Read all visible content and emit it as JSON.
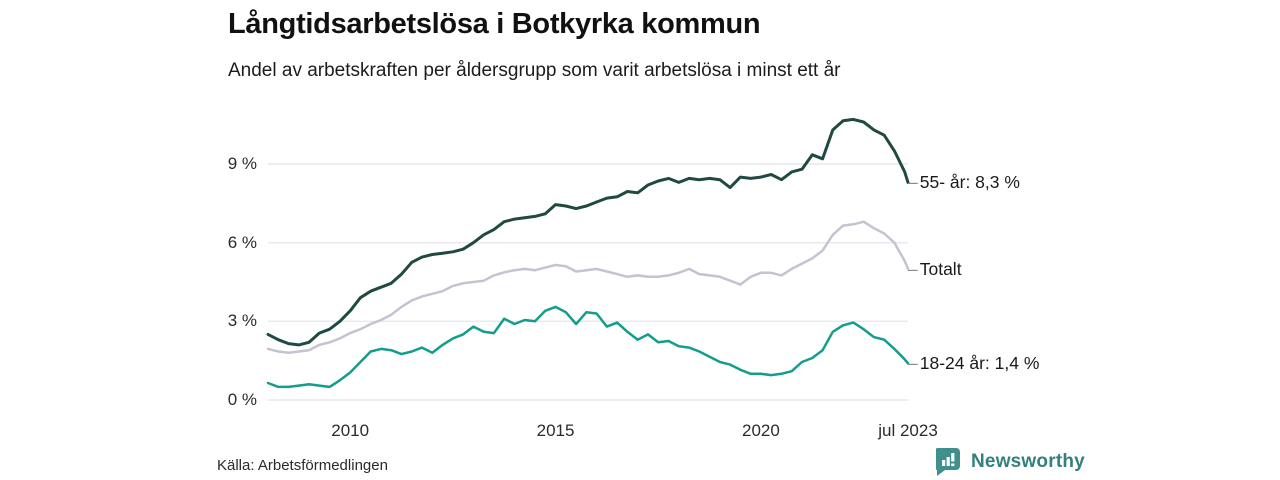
{
  "header": {
    "title": "Långtidsarbetslösa i Botkyrka kommun",
    "subtitle": "Andel av arbetskraften per åldersgrupp som varit arbetslösa i minst ett år"
  },
  "footer": {
    "source": "Källa: Arbetsförmedlingen",
    "logo_text": "Newsworthy"
  },
  "colors": {
    "series_55": "#204a41",
    "series_total": "#c6c2d1",
    "series_1824": "#149c8c",
    "grid": "#e9e8ec",
    "leader_dash": "#8c8c8c",
    "logo_teal": "#3e8f8d"
  },
  "chart_data": {
    "type": "line",
    "title": "Långtidsarbetslösa i Botkyrka kommun",
    "subtitle": "Andel av arbetskraften per åldersgrupp som varit arbetslösa i minst ett år",
    "xlabel": "",
    "ylabel": "",
    "grid": "horizontal",
    "legend_position": "right-end-labels",
    "x_range": [
      2008,
      2023.58
    ],
    "y_range_gridlines": [
      0,
      9
    ],
    "y_ticks": [
      {
        "value": 0,
        "label": "0 %"
      },
      {
        "value": 3,
        "label": "3 %"
      },
      {
        "value": 6,
        "label": "6 %"
      },
      {
        "value": 9,
        "label": "9 %"
      }
    ],
    "x_ticks": [
      {
        "value": 2010,
        "label": "2010"
      },
      {
        "value": 2015,
        "label": "2015"
      },
      {
        "value": 2020,
        "label": "2020"
      },
      {
        "value": 2023.58,
        "label": "jul 2023"
      }
    ],
    "x": [
      2008,
      2008.25,
      2008.5,
      2008.75,
      2009,
      2009.25,
      2009.5,
      2009.75,
      2010,
      2010.25,
      2010.5,
      2010.75,
      2011,
      2011.25,
      2011.5,
      2011.75,
      2012,
      2012.25,
      2012.5,
      2012.75,
      2013,
      2013.25,
      2013.5,
      2013.75,
      2014,
      2014.25,
      2014.5,
      2014.75,
      2015,
      2015.25,
      2015.5,
      2015.75,
      2016,
      2016.25,
      2016.5,
      2016.75,
      2017,
      2017.25,
      2017.5,
      2017.75,
      2018,
      2018.25,
      2018.5,
      2018.75,
      2019,
      2019.25,
      2019.5,
      2019.75,
      2020,
      2020.25,
      2020.5,
      2020.75,
      2021,
      2021.25,
      2021.5,
      2021.75,
      2022,
      2022.25,
      2022.5,
      2022.75,
      2023,
      2023.25,
      2023.5,
      2023.58
    ],
    "series": [
      {
        "name": "Totalt",
        "end_label": "Totalt",
        "end_value_label": null,
        "color_key": "series_total",
        "stroke_width": 2.5,
        "values": [
          1.95,
          1.85,
          1.8,
          1.85,
          1.9,
          2.1,
          2.2,
          2.35,
          2.55,
          2.7,
          2.9,
          3.05,
          3.25,
          3.55,
          3.8,
          3.95,
          4.05,
          4.15,
          4.35,
          4.45,
          4.5,
          4.55,
          4.75,
          4.87,
          4.95,
          5.0,
          4.95,
          5.05,
          5.15,
          5.1,
          4.9,
          4.95,
          5.0,
          4.9,
          4.8,
          4.7,
          4.75,
          4.7,
          4.7,
          4.75,
          4.85,
          5.0,
          4.8,
          4.75,
          4.7,
          4.55,
          4.4,
          4.7,
          4.85,
          4.85,
          4.75,
          5.0,
          5.2,
          5.4,
          5.7,
          6.3,
          6.65,
          6.7,
          6.8,
          6.55,
          6.35,
          6.0,
          5.3,
          5.0
        ]
      },
      {
        "name": "18-24 år",
        "end_label": "18-24 år: 1,4 %",
        "end_value": 1.4,
        "color_key": "series_1824",
        "stroke_width": 2.5,
        "values": [
          0.65,
          0.5,
          0.5,
          0.55,
          0.6,
          0.55,
          0.5,
          0.75,
          1.05,
          1.45,
          1.85,
          1.95,
          1.9,
          1.75,
          1.85,
          2.0,
          1.8,
          2.1,
          2.35,
          2.5,
          2.8,
          2.6,
          2.55,
          3.1,
          2.9,
          3.05,
          3.0,
          3.4,
          3.55,
          3.35,
          2.9,
          3.35,
          3.3,
          2.8,
          2.95,
          2.6,
          2.3,
          2.5,
          2.2,
          2.25,
          2.05,
          2.0,
          1.85,
          1.65,
          1.45,
          1.35,
          1.15,
          1.0,
          1.0,
          0.95,
          1.0,
          1.1,
          1.45,
          1.6,
          1.9,
          2.6,
          2.85,
          2.95,
          2.7,
          2.4,
          2.3,
          1.95,
          1.55,
          1.4
        ]
      },
      {
        "name": "55- år",
        "end_label": "55- år: 8,3 %",
        "end_value": 8.3,
        "color_key": "series_55",
        "stroke_width": 3,
        "values": [
          2.5,
          2.3,
          2.15,
          2.1,
          2.2,
          2.55,
          2.7,
          3.0,
          3.4,
          3.9,
          4.15,
          4.3,
          4.45,
          4.8,
          5.25,
          5.45,
          5.55,
          5.6,
          5.65,
          5.75,
          6.0,
          6.3,
          6.5,
          6.8,
          6.9,
          6.95,
          7.0,
          7.1,
          7.45,
          7.4,
          7.3,
          7.4,
          7.55,
          7.7,
          7.75,
          7.95,
          7.9,
          8.2,
          8.35,
          8.45,
          8.3,
          8.45,
          8.4,
          8.45,
          8.4,
          8.1,
          8.5,
          8.45,
          8.5,
          8.6,
          8.4,
          8.7,
          8.8,
          9.35,
          9.2,
          10.3,
          10.65,
          10.7,
          10.6,
          10.3,
          10.1,
          9.5,
          8.7,
          8.3
        ]
      }
    ]
  }
}
